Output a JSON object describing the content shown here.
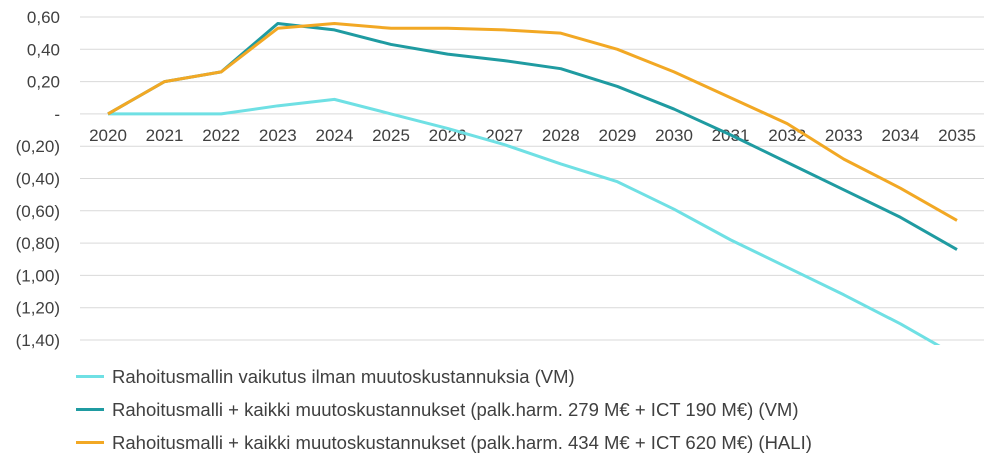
{
  "chart_data": {
    "type": "line",
    "x": [
      "2020",
      "2021",
      "2022",
      "2023",
      "2024",
      "2025",
      "2026",
      "2027",
      "2028",
      "2029",
      "2030",
      "2031",
      "2032",
      "2033",
      "2034",
      "2035"
    ],
    "ylim": [
      -1.4,
      0.6
    ],
    "yticks": [
      0.6,
      0.4,
      0.2,
      0,
      -0.2,
      -0.4,
      -0.6,
      -0.8,
      -1.0,
      -1.2,
      -1.4
    ],
    "ytick_labels": [
      "0,60",
      "0,40",
      "0,20",
      "-",
      "(0,20)",
      "(0,40)",
      "(0,60)",
      "(0,80)",
      "(1,00)",
      "(1,20)",
      "(1,40)"
    ],
    "grid": true,
    "legend_position": "bottom",
    "series": [
      {
        "name": "Rahoitusmallin vaikutus ilman muutoskustannuksia (VM)",
        "color": "#6FE0E4",
        "values": [
          0,
          0,
          0,
          0.05,
          0.09,
          0.0,
          -0.09,
          -0.19,
          -0.31,
          -0.42,
          -0.59,
          -0.78,
          -0.95,
          -1.12,
          -1.3,
          -1.5
        ]
      },
      {
        "name": "Rahoitusmalli + kaikki muutoskustannukset (palk.harm. 279 M€ + ICT 190 M€) (VM)",
        "color": "#1F9BA1",
        "values": [
          0,
          0.2,
          0.26,
          0.56,
          0.52,
          0.43,
          0.37,
          0.33,
          0.28,
          0.17,
          0.03,
          -0.13,
          -0.3,
          -0.47,
          -0.64,
          -0.84
        ]
      },
      {
        "name": "Rahoitusmalli + kaikki muutoskustannukset (palk.harm. 434 M€ + ICT 620 M€) (HALI)",
        "color": "#F2A824",
        "values": [
          0,
          0.2,
          0.26,
          0.53,
          0.56,
          0.53,
          0.53,
          0.52,
          0.5,
          0.4,
          0.26,
          0.1,
          -0.06,
          -0.28,
          -0.46,
          -0.66
        ]
      }
    ]
  }
}
